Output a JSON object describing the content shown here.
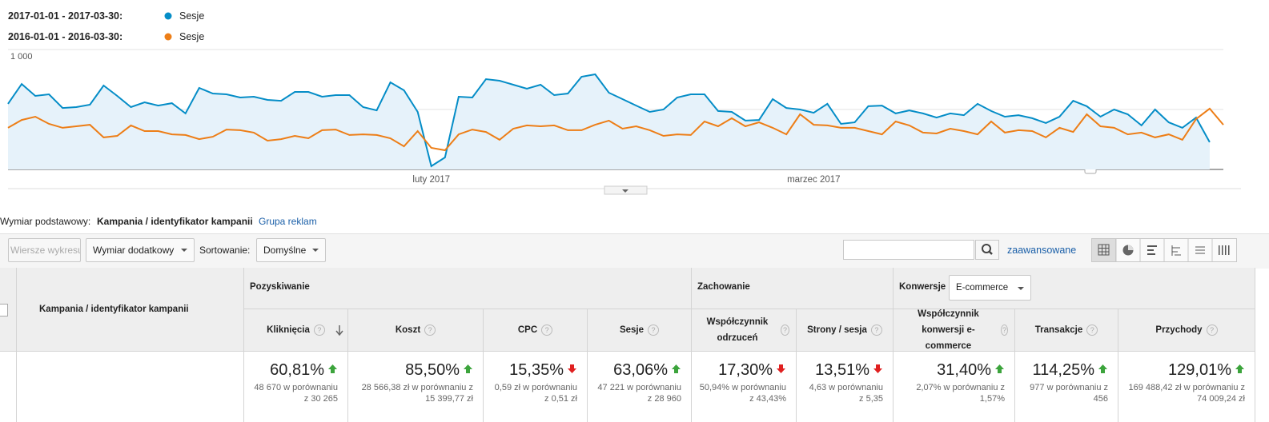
{
  "chart_data": {
    "type": "line",
    "series": [
      {
        "name": "Sesje",
        "range": "2017-01-01 - 2017-03-30:",
        "color": "#058dc7",
        "fill": "#e6f2fa",
        "values": [
          547,
          713,
          613,
          627,
          513,
          520,
          540,
          700,
          613,
          520,
          560,
          533,
          553,
          467,
          680,
          633,
          627,
          600,
          607,
          580,
          573,
          647,
          647,
          607,
          620,
          620,
          520,
          493,
          727,
          660,
          480,
          27,
          100,
          607,
          600,
          753,
          740,
          707,
          673,
          707,
          620,
          633,
          773,
          793,
          640,
          587,
          533,
          480,
          500,
          600,
          627,
          627,
          487,
          480,
          407,
          413,
          587,
          513,
          500,
          473,
          547,
          380,
          393,
          527,
          533,
          467,
          493,
          467,
          433,
          467,
          453,
          547,
          487,
          440,
          453,
          427,
          387,
          440,
          573,
          527,
          440,
          500,
          460,
          367,
          500,
          393,
          347,
          433,
          227,
          null
        ]
      },
      {
        "name": "Sesje",
        "range": "2016-01-01 - 2016-03-30:",
        "color": "#ed7e17",
        "values": [
          347,
          413,
          440,
          380,
          347,
          360,
          373,
          267,
          280,
          367,
          320,
          320,
          293,
          287,
          253,
          273,
          333,
          327,
          307,
          240,
          253,
          280,
          260,
          327,
          333,
          287,
          293,
          287,
          260,
          193,
          320,
          180,
          160,
          293,
          333,
          313,
          247,
          340,
          367,
          360,
          367,
          327,
          327,
          373,
          407,
          340,
          360,
          327,
          280,
          293,
          287,
          400,
          360,
          427,
          360,
          393,
          347,
          293,
          460,
          373,
          367,
          347,
          347,
          320,
          293,
          400,
          367,
          307,
          300,
          340,
          320,
          293,
          400,
          307,
          327,
          320,
          267,
          347,
          313,
          460,
          360,
          347,
          293,
          307,
          267,
          293,
          247,
          420,
          507,
          373
        ]
      }
    ],
    "categories": [
      null,
      null,
      null,
      null,
      null,
      null,
      null,
      null,
      null,
      null,
      null,
      null,
      null,
      null,
      null,
      null,
      null,
      null,
      null,
      null,
      null,
      null,
      null,
      null,
      null,
      null,
      null,
      null,
      null,
      null,
      null,
      "luty 2017",
      null,
      null,
      null,
      null,
      null,
      null,
      null,
      null,
      null,
      null,
      null,
      null,
      null,
      null,
      null,
      null,
      null,
      null,
      null,
      null,
      null,
      null,
      null,
      null,
      null,
      null,
      null,
      "marzec 2017",
      null,
      null,
      null,
      null,
      null,
      null,
      null,
      null,
      null,
      null,
      null,
      null,
      null,
      null,
      null,
      null,
      null,
      null,
      null,
      null,
      null,
      null,
      null,
      null,
      null,
      null,
      null,
      null,
      null,
      null
    ],
    "ylim": [
      0,
      1000
    ],
    "yticks": [
      500,
      {
        "value": 1000,
        "label": "1 000"
      }
    ],
    "grid": true
  },
  "toolbar": {
    "primary_label": "Wymiar podstawowy:",
    "primary_value": "Kampania / identyfikator kampanii",
    "alternate": "Grupa reklam",
    "plot_rows": "Wiersze wykresu",
    "secondary": "Wymiar dodatkowy",
    "sort_label": "Sortowanie:",
    "sort_value": "Domyślne",
    "advanced": "zaawansowane"
  },
  "table": {
    "dimension": "Kampania / identyfikator kampanii",
    "groups": [
      {
        "label": "Pozyskiwanie"
      },
      {
        "label": "Zachowanie"
      },
      {
        "label": "Konwersje",
        "selector": "E-commerce"
      }
    ],
    "columns": [
      {
        "label": "Kliknięcia",
        "change": "60,81%",
        "trend": "up",
        "compare": "48 670 w porównaniu z 30 265"
      },
      {
        "label": "Koszt",
        "change": "85,50%",
        "trend": "up",
        "compare": "28 566,38 zł w porównaniu z 15 399,77 zł"
      },
      {
        "label": "CPC",
        "change": "15,35%",
        "trend": "down",
        "compare": "0,59 zł w porównaniu z 0,51 zł"
      },
      {
        "label": "Sesje",
        "change": "63,06%",
        "trend": "up",
        "compare": "47 221 w porównaniu z 28 960"
      },
      {
        "label": "Współczynnik odrzuceń",
        "change": "17,30%",
        "trend": "down",
        "compare": "50,94% w porównaniu z 43,43%"
      },
      {
        "label": "Strony / sesja",
        "change": "13,51%",
        "trend": "down",
        "compare": "4,63 w porównaniu z 5,35"
      },
      {
        "label": "Współczynnik konwersji e-commerce",
        "change": "31,40%",
        "trend": "up",
        "compare": "2,07% w porównaniu z 1,57%"
      },
      {
        "label": "Transakcje",
        "change": "114,25%",
        "trend": "up",
        "compare": "977 w porównaniu z 456"
      },
      {
        "label": "Przychody",
        "change": "129,01%",
        "trend": "up",
        "compare": "169 488,42 zł w porównaniu z 74 009,24 zł"
      }
    ]
  }
}
